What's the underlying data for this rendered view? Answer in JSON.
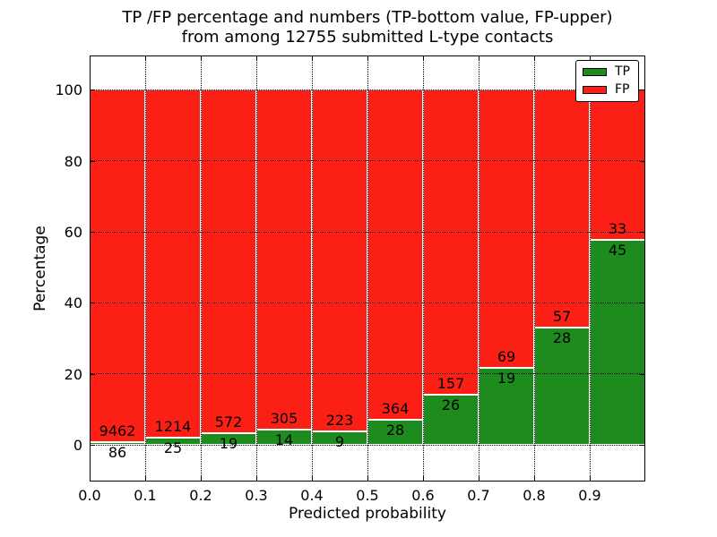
{
  "figure": {
    "title_line1": "TP /FP percentage and numbers (TP-bottom value, FP-upper)",
    "title_line2": "from among 12755 submitted L-type contacts",
    "xlabel": "Predicted probability",
    "ylabel": "Percentage"
  },
  "legend": {
    "position": "upper right",
    "items": [
      {
        "label": "TP",
        "color": "#1e8b1e"
      },
      {
        "label": "FP",
        "color": "#fb1f16"
      }
    ]
  },
  "chart_data": {
    "type": "bar",
    "stacked": true,
    "normalization": "each 0.1-wide probability bin scaled to 100%",
    "title": "TP /FP percentage and numbers (TP-bottom value, FP-upper) from among 12755 submitted L-type contacts",
    "xlabel": "Predicted probability",
    "ylabel": "Percentage",
    "total_contacts": 12755,
    "categories": [
      "0.0",
      "0.1",
      "0.2",
      "0.3",
      "0.4",
      "0.5",
      "0.6",
      "0.7",
      "0.8",
      "0.9"
    ],
    "bin_width": 0.1,
    "series": [
      {
        "name": "TP",
        "color": "#1e8b1e",
        "counts": [
          86,
          25,
          19,
          14,
          9,
          28,
          26,
          19,
          28,
          45
        ]
      },
      {
        "name": "FP",
        "color": "#fb1f16",
        "counts": [
          9462,
          1214,
          572,
          305,
          223,
          364,
          157,
          69,
          57,
          33
        ]
      }
    ],
    "tp_percent_of_bin": [
      0.9,
      2.02,
      3.21,
      4.39,
      3.88,
      7.14,
      14.21,
      21.59,
      32.94,
      57.69
    ],
    "ylim": [
      -10.3,
      109.7
    ],
    "yticks": [
      0,
      20,
      40,
      60,
      80,
      100
    ],
    "grid": {
      "linestyle": "dotted",
      "color": "#000000",
      "above_bars": true
    },
    "bar_edge_color": "#ffffff",
    "legend_position": "upper right"
  }
}
